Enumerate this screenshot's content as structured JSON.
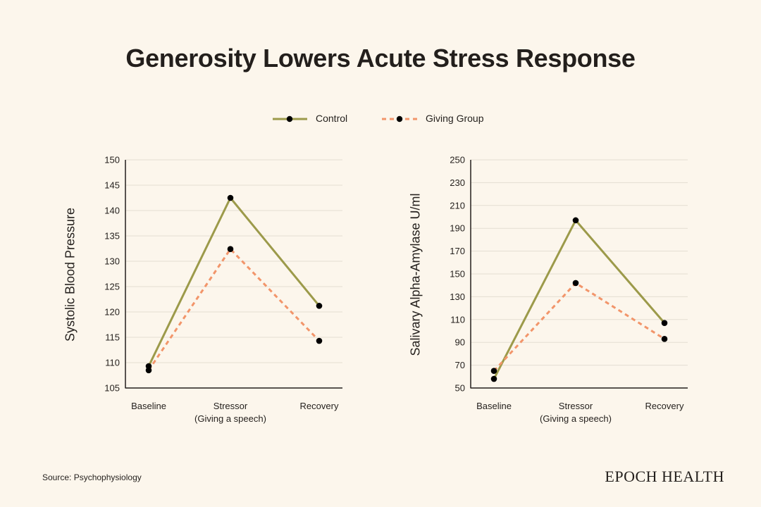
{
  "title": "Generosity Lowers Acute Stress Response",
  "legend": [
    {
      "label": "Control",
      "color": "#9c9a4a",
      "style": "solid"
    },
    {
      "label": "Giving Group",
      "color": "#f2956a",
      "style": "dashed"
    }
  ],
  "source": "Source: Psychophysiology",
  "brand": "EPOCH HEALTH",
  "colors": {
    "background": "#fcf6ec",
    "control": "#9c9a4a",
    "giving": "#f2956a",
    "marker": "#000000",
    "grid": "#e3ddd2"
  },
  "chart_data": [
    {
      "type": "line",
      "ylabel": "Systolic Blood Pressure",
      "categories": [
        [
          "Baseline"
        ],
        [
          "Stressor",
          "(Giving a speech)"
        ],
        [
          "Recovery"
        ]
      ],
      "ylim": [
        105,
        150
      ],
      "yticks": [
        105,
        110,
        115,
        120,
        125,
        130,
        135,
        140,
        145,
        150
      ],
      "grid": true,
      "series": [
        {
          "name": "Control",
          "values": [
            109.3,
            142.5,
            121.2
          ]
        },
        {
          "name": "Giving Group",
          "values": [
            108.5,
            132.4,
            114.3
          ]
        }
      ]
    },
    {
      "type": "line",
      "ylabel": "Salivary Alpha-Amylase U/ml",
      "categories": [
        [
          "Baseline"
        ],
        [
          "Stressor",
          "(Giving a speech)"
        ],
        [
          "Recovery"
        ]
      ],
      "ylim": [
        50,
        250
      ],
      "yticks": [
        50,
        70,
        90,
        110,
        130,
        150,
        170,
        190,
        210,
        230,
        250
      ],
      "grid": true,
      "series": [
        {
          "name": "Control",
          "values": [
            58,
            197,
            107
          ]
        },
        {
          "name": "Giving Group",
          "values": [
            65,
            142,
            93
          ]
        }
      ]
    }
  ]
}
